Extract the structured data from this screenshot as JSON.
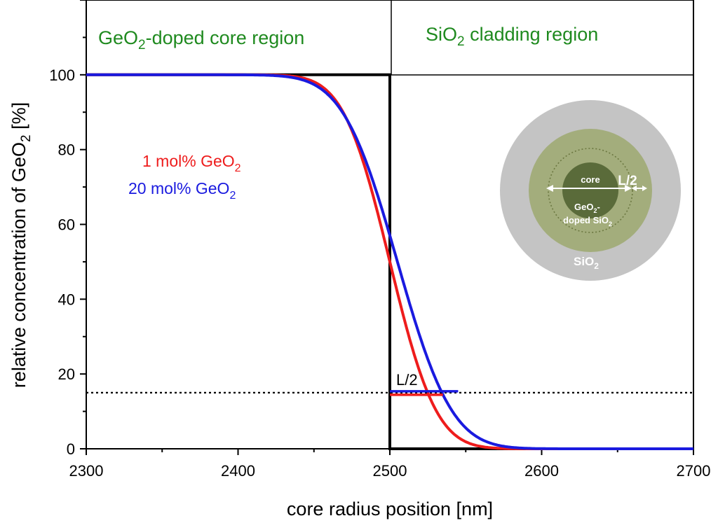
{
  "chart_data": {
    "type": "line",
    "xlabel": "core radius position [nm]",
    "ylabel_main": "relative concentration of GeO",
    "ylabel_sub": "2",
    "ylabel_tail": " [%]",
    "xlim": [
      2300,
      2700
    ],
    "ylim": [
      0,
      120
    ],
    "x_ticks": [
      2300,
      2400,
      2500,
      2600,
      2700
    ],
    "y_ticks": [
      0,
      20,
      40,
      60,
      80,
      100
    ],
    "regions": [
      {
        "name": "core",
        "main": "GeO",
        "sub": "2",
        "tail": "-doped core region",
        "color": "#1f8a1f"
      },
      {
        "name": "cladding",
        "main": "SiO",
        "sub": "2",
        "tail": " cladding region",
        "color": "#1f8a1f"
      }
    ],
    "series": [
      {
        "label_main": "1 mol% GeO",
        "label_sub": "2",
        "color": "#ee1c1c",
        "center": 2500,
        "half_width": 34,
        "x": [
          2300,
          2400,
          2440,
          2460,
          2470,
          2480,
          2490,
          2500,
          2510,
          2520,
          2530,
          2540,
          2550,
          2560,
          2580,
          2600,
          2700
        ],
        "y": [
          100,
          99.6,
          96.0,
          89.6,
          82.2,
          72.1,
          58.3,
          50.0,
          36.7,
          25.3,
          16.2,
          9.7,
          5.4,
          2.8,
          0.6,
          0.1,
          0
        ]
      },
      {
        "label_main": "20 mol% GeO",
        "label_sub": "2",
        "color": "#1a1adf",
        "center": 2505,
        "half_width": 40,
        "x": [
          2300,
          2350,
          2380,
          2400,
          2420,
          2440,
          2460,
          2480,
          2490,
          2500,
          2510,
          2520,
          2530,
          2545,
          2560,
          2580,
          2600,
          2620,
          2700
        ],
        "y": [
          100,
          99.5,
          97.8,
          95.4,
          91.2,
          84.4,
          75.0,
          66.0,
          61.0,
          55.5,
          46.5,
          37.7,
          29.4,
          15.5,
          7.9,
          2.9,
          0.9,
          0.2,
          0
        ]
      }
    ],
    "step_profile": {
      "x": [
        2300,
        2500,
        2500,
        2700
      ],
      "y": [
        100,
        100,
        0,
        0
      ]
    },
    "reference_line": {
      "y": 15,
      "style": "dotted"
    },
    "l_half": {
      "label": "L/2",
      "red_x": [
        2500,
        2535
      ],
      "blue_x": [
        2500,
        2545
      ],
      "y": 15
    }
  },
  "legend": {
    "item1": {
      "main": "1 mol% GeO",
      "sub": "2"
    },
    "item2": {
      "main": "20 mol% GeO",
      "sub": "2"
    }
  },
  "inset": {
    "core_label": "core",
    "lhalf_label": "L/2",
    "doped_line1_main": "GeO",
    "doped_line1_sub": "2",
    "doped_line1_tail": "-",
    "doped_line2_main": "doped SiO",
    "doped_line2_sub": "2",
    "cladding_main": "SiO",
    "cladding_sub": "2",
    "colors": {
      "cladding": "#c4c4c4",
      "doped": "#a3ad7c",
      "core": "#5a6b3a",
      "dotted": "#6b7740"
    }
  }
}
